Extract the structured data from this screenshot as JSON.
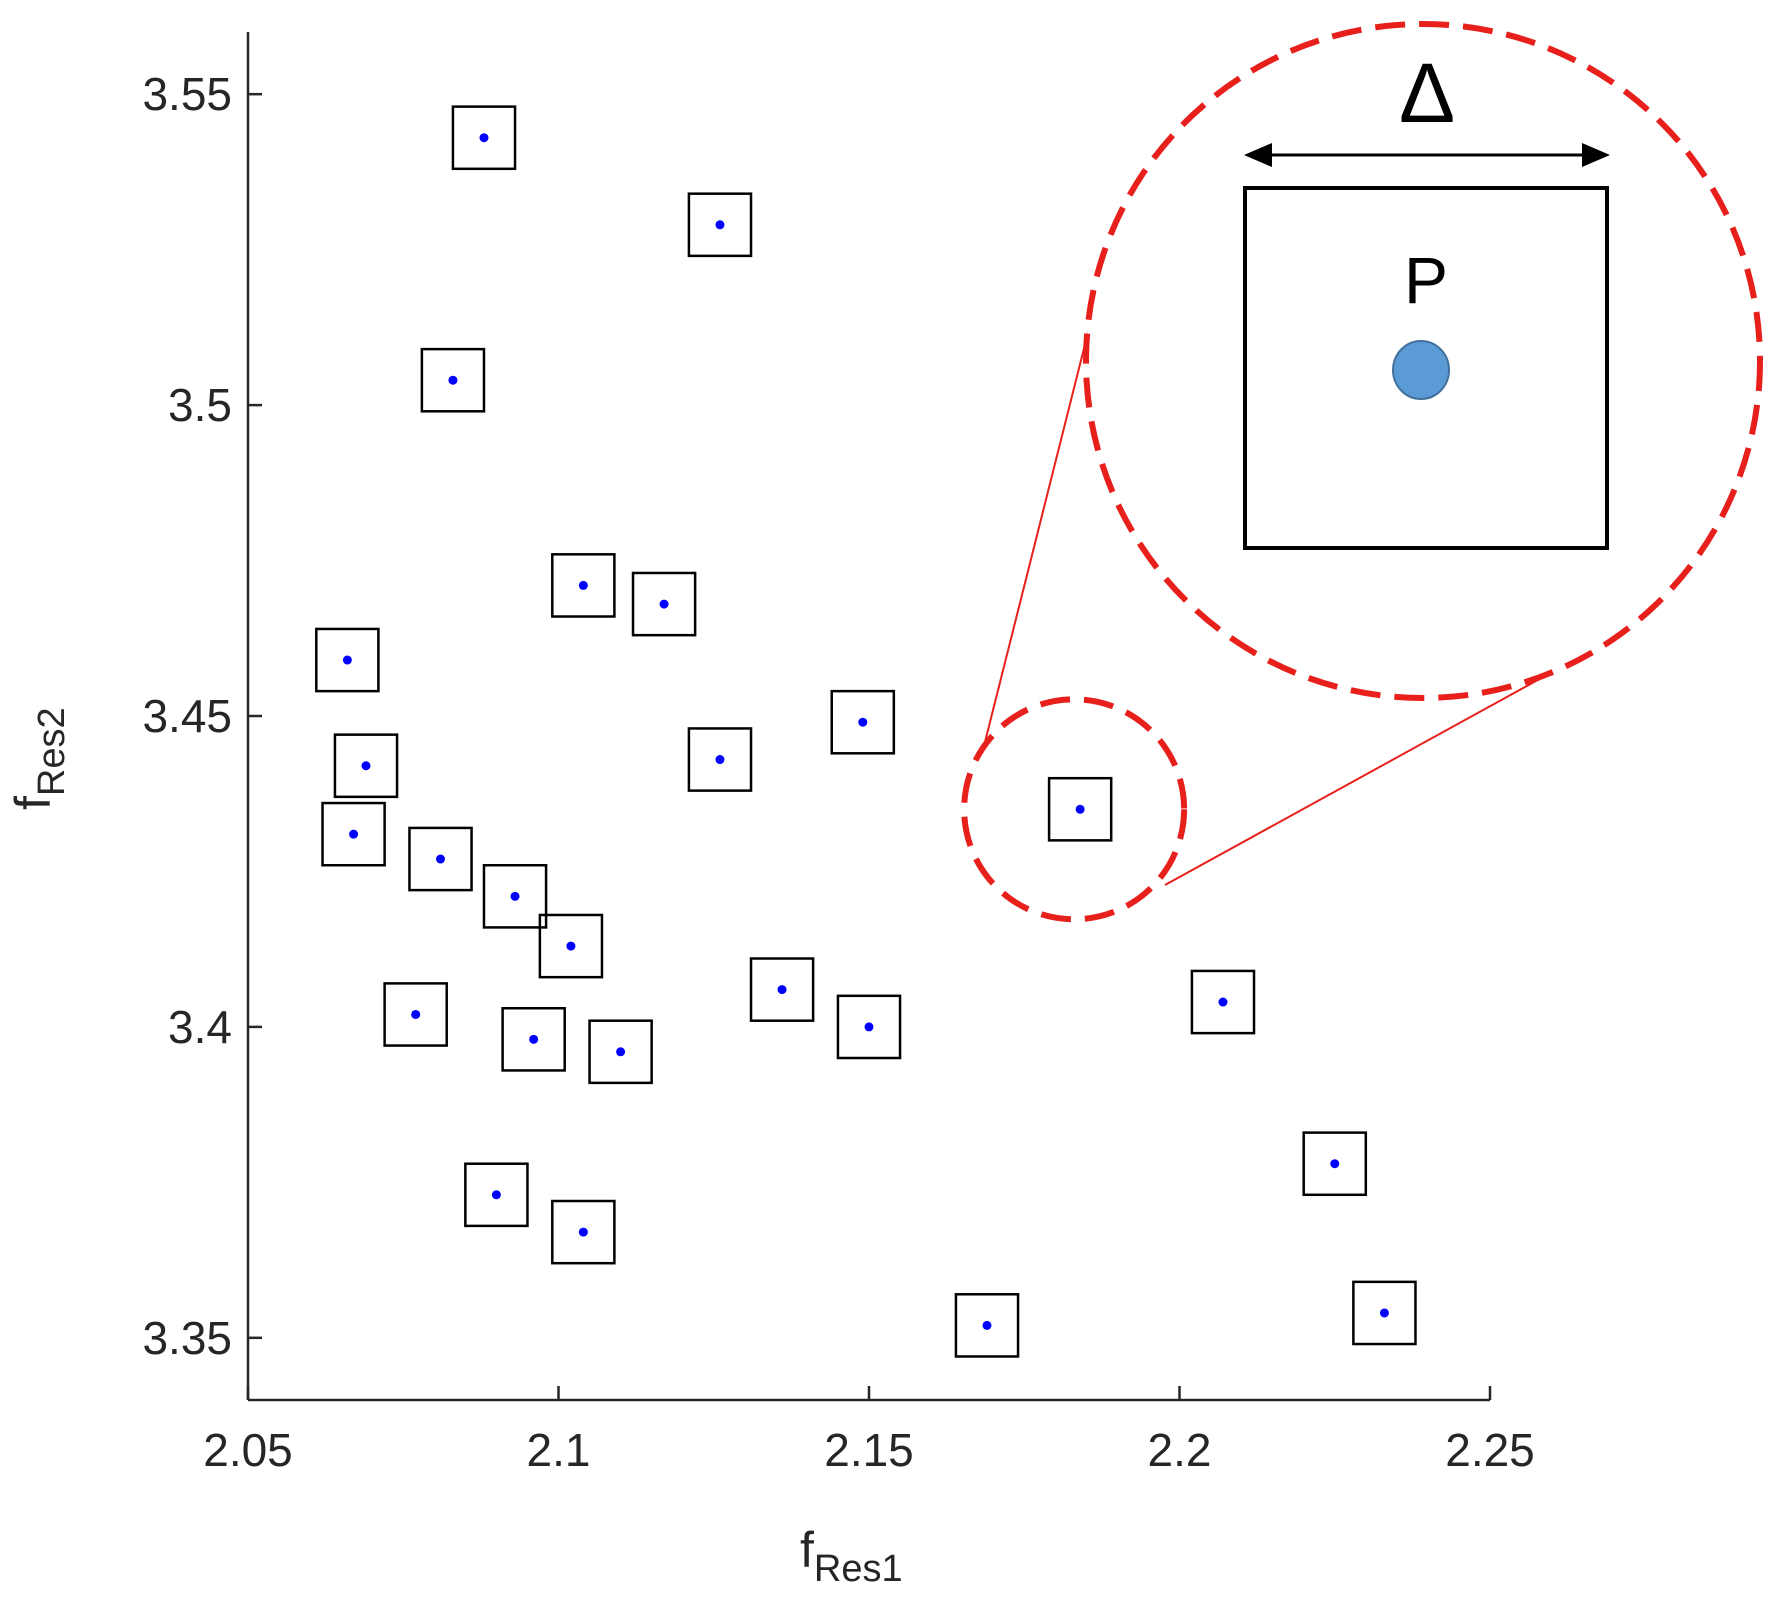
{
  "chart_data": {
    "type": "scatter",
    "title": "",
    "xlabel": {
      "base": "f",
      "sub": "Res1"
    },
    "ylabel": {
      "base": "f",
      "sub": "Res2"
    },
    "xlim": [
      2.05,
      2.25
    ],
    "ylim": [
      3.34,
      3.56
    ],
    "xticks": [
      2.05,
      2.1,
      2.15,
      2.2,
      2.25
    ],
    "xtick_labels": [
      "2.05",
      "2.1",
      "2.15",
      "2.2",
      "2.25"
    ],
    "yticks": [
      3.35,
      3.4,
      3.45,
      3.5,
      3.55
    ],
    "ytick_labels": [
      "3.35",
      "3.4",
      "3.45",
      "3.5",
      "3.55"
    ],
    "grid": false,
    "box_half_width": {
      "x": 0.005,
      "y": 0.005
    },
    "marker_color": "#0000ff",
    "box_color": "#000000",
    "highlight_color": "#e8201c",
    "points": [
      {
        "x": 2.088,
        "y": 3.543
      },
      {
        "x": 2.126,
        "y": 3.529
      },
      {
        "x": 2.083,
        "y": 3.504
      },
      {
        "x": 2.104,
        "y": 3.471
      },
      {
        "x": 2.117,
        "y": 3.468
      },
      {
        "x": 2.066,
        "y": 3.459
      },
      {
        "x": 2.149,
        "y": 3.449
      },
      {
        "x": 2.126,
        "y": 3.443
      },
      {
        "x": 2.069,
        "y": 3.442
      },
      {
        "x": 2.184,
        "y": 3.435,
        "highlighted": true
      },
      {
        "x": 2.067,
        "y": 3.431
      },
      {
        "x": 2.081,
        "y": 3.427
      },
      {
        "x": 2.093,
        "y": 3.421
      },
      {
        "x": 2.102,
        "y": 3.413
      },
      {
        "x": 2.136,
        "y": 3.406
      },
      {
        "x": 2.207,
        "y": 3.404
      },
      {
        "x": 2.077,
        "y": 3.402
      },
      {
        "x": 2.15,
        "y": 3.4
      },
      {
        "x": 2.096,
        "y": 3.398
      },
      {
        "x": 2.11,
        "y": 3.396
      },
      {
        "x": 2.225,
        "y": 3.378
      },
      {
        "x": 2.09,
        "y": 3.373
      },
      {
        "x": 2.104,
        "y": 3.367
      },
      {
        "x": 2.233,
        "y": 3.354
      },
      {
        "x": 2.169,
        "y": 3.352
      }
    ],
    "inset": {
      "width_symbol": "Δ",
      "point_label": "P",
      "point_color": "#5b9bd5",
      "point_edge_color": "#41719c"
    }
  }
}
